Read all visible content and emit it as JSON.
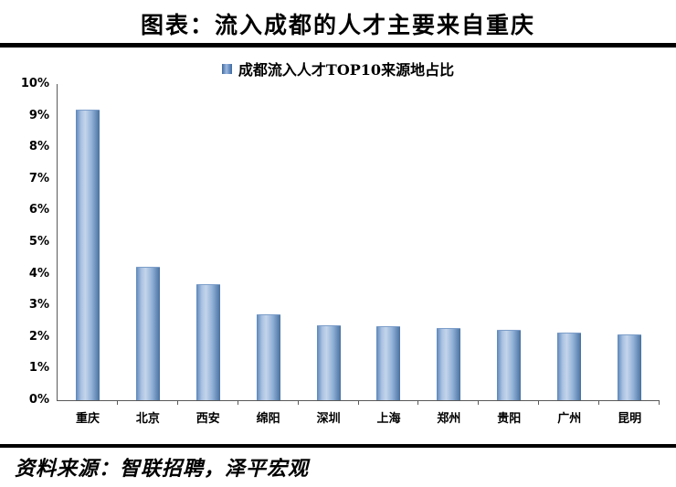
{
  "title": "图表：流入成都的人才主要来自重庆",
  "legend": {
    "label": "成都流入人才TOP10来源地占比",
    "marker_color": "#4f81bd"
  },
  "source": "资料来源：智联招聘，泽平宏观",
  "colors": {
    "bar": "#4f81bd",
    "bar_light": "#c4d5eb",
    "bar_dark": "#49719f",
    "axis": "#595959",
    "divider": "#000000"
  },
  "chart_data": {
    "type": "bar",
    "title": "成都流入人才TOP10来源地占比",
    "categories": [
      "重庆",
      "北京",
      "西安",
      "绵阳",
      "深圳",
      "上海",
      "郑州",
      "贵阳",
      "广州",
      "昆明"
    ],
    "values": [
      9.15,
      4.2,
      3.65,
      2.7,
      2.35,
      2.3,
      2.25,
      2.2,
      2.1,
      2.05
    ],
    "unit": "%",
    "xlabel": "",
    "ylabel": "",
    "ylim": [
      0,
      10
    ],
    "ytick_step": 1,
    "ytick_labels": [
      "0%",
      "1%",
      "2%",
      "3%",
      "4%",
      "5%",
      "6%",
      "7%",
      "8%",
      "9%",
      "10%"
    ],
    "grid": false,
    "legend_position": "top"
  }
}
